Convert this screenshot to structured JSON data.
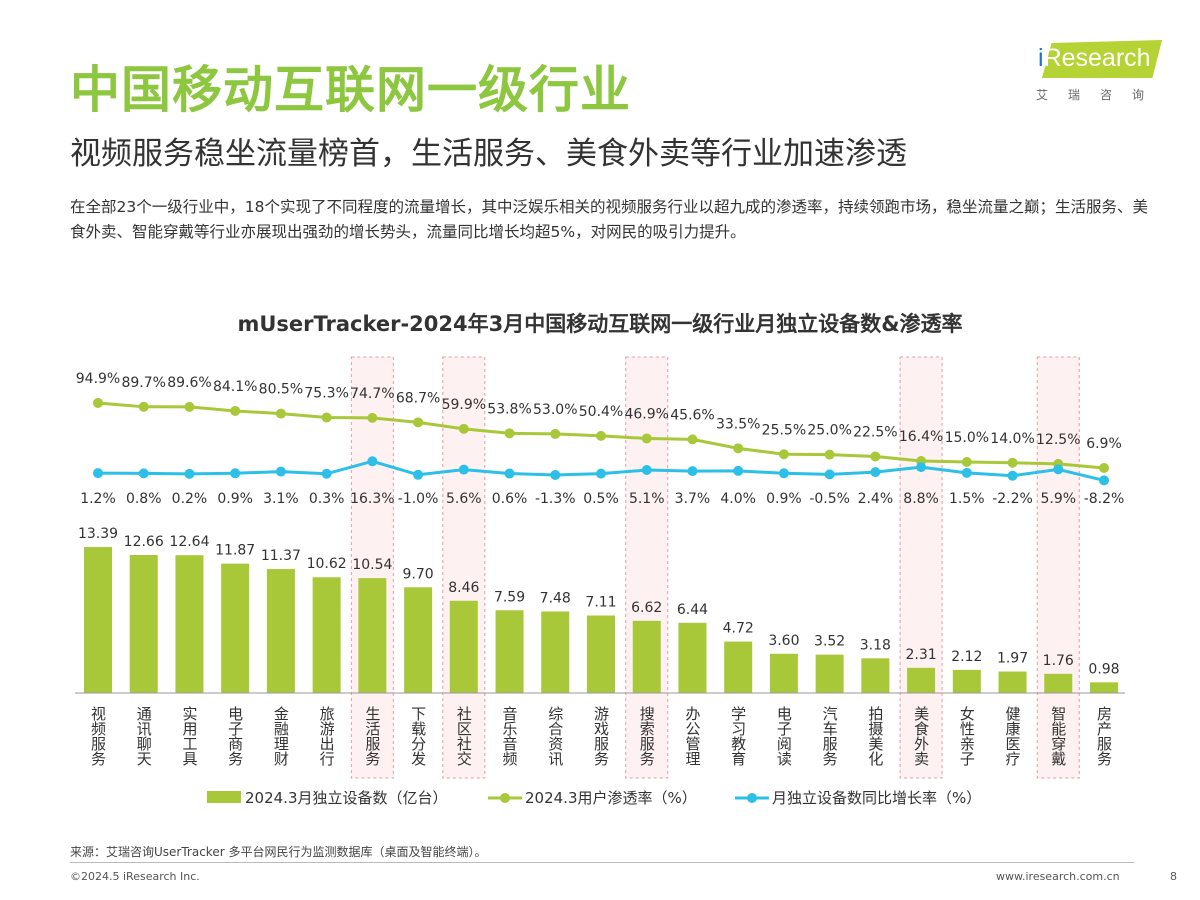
{
  "header": {
    "title": "中国移动互联网一级行业",
    "subtitle": "视频服务稳坐流量榜首，生活服务、美食外卖等行业加速渗透",
    "description": "在全部23个一级行业中，18个实现了不同程度的流量增长，其中泛娱乐相关的视频服务行业以超九成的渗透率，持续领跑市场，稳坐流量之巅；生活服务、美食外卖、智能穿戴等行业亦展现出强劲的增长势头，流量同比增长均超5%，对网民的吸引力提升。",
    "logo": {
      "brand": "iResearch",
      "cn": "艾瑞咨询"
    }
  },
  "chart_data": {
    "type": "bar+line",
    "title": "mUserTracker-2024年3月中国移动互联网一级行业月独立设备数&渗透率",
    "categories": [
      "视频服务",
      "通讯聊天",
      "实用工具",
      "电子商务",
      "金融理财",
      "旅游出行",
      "生活服务",
      "下载分发",
      "社区社交",
      "音乐音频",
      "综合资讯",
      "游戏服务",
      "搜索服务",
      "办公管理",
      "学习教育",
      "电子阅读",
      "汽车服务",
      "拍摄美化",
      "美食外卖",
      "女性亲子",
      "健康医疗",
      "智能穿戴",
      "房产服务"
    ],
    "highlighted": [
      "生活服务",
      "社区社交",
      "搜索服务",
      "美食外卖",
      "智能穿戴"
    ],
    "series": [
      {
        "name": "2024.3月独立设备数（亿台）",
        "type": "bar",
        "color": "#a8c83a",
        "values": [
          13.39,
          12.66,
          12.64,
          11.87,
          11.37,
          10.62,
          10.54,
          9.7,
          8.46,
          7.59,
          7.48,
          7.11,
          6.62,
          6.44,
          4.72,
          3.6,
          3.52,
          3.18,
          2.31,
          2.12,
          1.97,
          1.76,
          0.98
        ],
        "labels": [
          "13.39",
          "12.66",
          "12.64",
          "11.87",
          "11.37",
          "10.62",
          "10.54",
          "9.70",
          "8.46",
          "7.59",
          "7.48",
          "7.11",
          "6.62",
          "6.44",
          "4.72",
          "3.60",
          "3.52",
          "3.18",
          "2.31",
          "2.12",
          "1.97",
          "1.76",
          "0.98"
        ]
      },
      {
        "name": "2024.3用户渗透率（%）",
        "type": "line",
        "color": "#a8c83a",
        "values": [
          94.9,
          89.7,
          89.6,
          84.1,
          80.5,
          75.3,
          74.7,
          68.7,
          59.9,
          53.8,
          53.0,
          50.4,
          46.9,
          45.6,
          33.5,
          25.5,
          25.0,
          22.5,
          16.4,
          15.0,
          14.0,
          12.5,
          6.9
        ],
        "labels": [
          "94.9%",
          "89.7%",
          "89.6%",
          "84.1%",
          "80.5%",
          "75.3%",
          "74.7%",
          "68.7%",
          "59.9%",
          "53.8%",
          "53.0%",
          "50.4%",
          "46.9%",
          "45.6%",
          "33.5%",
          "25.5%",
          "25.0%",
          "22.5%",
          "16.4%",
          "15.0%",
          "14.0%",
          "12.5%",
          "6.9%"
        ]
      },
      {
        "name": "月独立设备数同比增长率（%）",
        "type": "line",
        "color": "#2cc0e8",
        "values": [
          1.2,
          0.8,
          0.2,
          0.9,
          3.1,
          0.3,
          16.3,
          -1.0,
          5.6,
          0.6,
          -1.3,
          0.5,
          5.1,
          3.7,
          4.0,
          0.9,
          -0.5,
          2.4,
          8.8,
          1.5,
          -2.2,
          5.9,
          -8.2
        ],
        "labels": [
          "1.2%",
          "0.8%",
          "0.2%",
          "0.9%",
          "3.1%",
          "0.3%",
          "16.3%",
          "-1.0%",
          "5.6%",
          "0.6%",
          "-1.3%",
          "0.5%",
          "5.1%",
          "3.7%",
          "4.0%",
          "0.9%",
          "-0.5%",
          "2.4%",
          "8.8%",
          "1.5%",
          "-2.2%",
          "5.9%",
          "-8.2%"
        ]
      }
    ],
    "legend": "bottom",
    "grid": false
  },
  "footer": {
    "source": "来源：艾瑞咨询UserTracker 多平台网民行为监测数据库（桌面及智能终端）。",
    "copyright": "©2024.5 iResearch Inc.",
    "site": "www.iresearch.com.cn",
    "page": "8"
  }
}
